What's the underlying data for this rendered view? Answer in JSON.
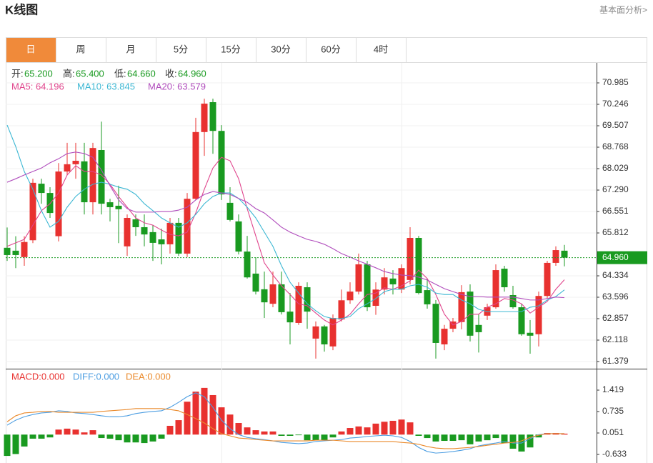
{
  "header": {
    "title": "K线图",
    "link": "基本面分析>"
  },
  "tabs": [
    "日",
    "周",
    "月",
    "5分",
    "15分",
    "30分",
    "60分",
    "4时"
  ],
  "chart_data": [
    {
      "type": "candlestick",
      "info": [
        {
          "label": "开:",
          "value": "65.200"
        },
        {
          "label": "高:",
          "value": "65.400"
        },
        {
          "label": "低:",
          "value": "64.660"
        },
        {
          "label": "收:",
          "value": "64.960"
        }
      ],
      "up_color": "#e8312f",
      "down_color": "#199a20",
      "open": [
        65.3,
        65.2,
        64.98,
        65.56,
        67.51,
        67.19,
        65.7,
        67.93,
        68.18,
        68.28,
        66.87,
        68.67,
        66.87,
        66.75,
        65.35,
        66.28,
        66.01,
        65.84,
        65.59,
        65.42,
        66.16,
        65.1,
        66.99,
        69.29,
        70.32,
        69.33,
        66.85,
        66.21,
        65.17,
        64.41,
        63.87,
        63.37,
        64.04,
        63.1,
        62.71,
        63.94,
        62.17,
        62.59,
        61.9,
        62.83,
        63.49,
        63.79,
        64.73,
        63.3,
        63.86,
        64.24,
        63.86,
        64.19,
        65.64,
        63.84,
        63.37,
        61.97,
        62.51,
        62.74,
        63.79,
        62.64,
        62.96,
        63.25,
        64.58,
        63.67,
        63.25,
        62.37,
        62.32,
        63.64,
        64.78,
        65.2
      ],
      "high": [
        66.0,
        65.7,
        65.7,
        67.68,
        67.68,
        67.39,
        68.22,
        68.92,
        68.92,
        68.92,
        68.92,
        69.65,
        66.99,
        67.44,
        66.45,
        66.45,
        66.45,
        66.08,
        65.96,
        66.33,
        66.33,
        67.19,
        69.78,
        70.44,
        70.44,
        69.53,
        67.39,
        66.45,
        65.71,
        64.97,
        64.48,
        64.48,
        64.48,
        63.74,
        64.11,
        64.11,
        62.76,
        62.64,
        63.0,
        63.86,
        64.11,
        65.1,
        64.85,
        64.11,
        64.6,
        64.53,
        64.73,
        66.01,
        65.71,
        64.24,
        63.5,
        62.64,
        62.88,
        64.01,
        64.04,
        63.0,
        63.37,
        64.73,
        64.68,
        63.99,
        63.37,
        62.81,
        63.79,
        64.85,
        65.35,
        65.4
      ],
      "low": [
        64.85,
        64.6,
        64.68,
        65.46,
        66.82,
        66.33,
        65.52,
        67.8,
        67.68,
        66.45,
        66.45,
        66.45,
        66.21,
        65.46,
        65.02,
        65.71,
        65.35,
        64.85,
        64.73,
        65.1,
        65.02,
        64.98,
        66.95,
        68.47,
        68.54,
        66.95,
        66.21,
        65.07,
        64.24,
        63.69,
        62.88,
        63.25,
        63.0,
        61.97,
        62.64,
        62.51,
        61.48,
        61.72,
        61.77,
        62.76,
        63.37,
        63.69,
        63.12,
        62.99,
        63.69,
        63.69,
        63.74,
        64.04,
        63.69,
        63.2,
        61.48,
        61.77,
        62.39,
        62.49,
        62.07,
        61.69,
        62.81,
        63.2,
        63.79,
        63.2,
        62.27,
        61.65,
        61.9,
        63.55,
        64.68,
        64.66
      ],
      "close": [
        65.05,
        65.05,
        65.5,
        67.54,
        67.19,
        66.5,
        67.93,
        68.18,
        68.3,
        66.87,
        68.74,
        66.82,
        66.7,
        66.63,
        66.33,
        66.01,
        65.76,
        65.47,
        65.42,
        66.16,
        65.1,
        66.99,
        69.29,
        70.27,
        69.33,
        67.14,
        66.26,
        65.17,
        64.28,
        63.79,
        63.42,
        64.04,
        63.08,
        62.73,
        63.99,
        63.1,
        62.59,
        61.97,
        62.88,
        63.49,
        63.79,
        64.73,
        63.25,
        63.86,
        64.28,
        64.04,
        64.6,
        65.64,
        63.74,
        63.35,
        62.02,
        62.51,
        62.76,
        63.77,
        62.27,
        62.39,
        63.25,
        64.53,
        63.94,
        63.25,
        62.32,
        62.27,
        63.64,
        64.78,
        65.22,
        64.96
      ],
      "series": [
        {
          "name": "MA5: 64.196",
          "color": "#e0448c",
          "values": [
            65.35,
            65.47,
            65.59,
            66.08,
            66.58,
            66.82,
            67.19,
            67.81,
            68.13,
            67.93,
            67.93,
            67.81,
            67.49,
            67.07,
            66.7,
            66.33,
            66.16,
            66.08,
            65.91,
            65.76,
            65.71,
            65.84,
            66.5,
            67.32,
            68.05,
            68.42,
            68.3,
            67.68,
            66.65,
            65.71,
            64.78,
            64.36,
            63.99,
            63.69,
            63.37,
            63.3,
            63.05,
            62.81,
            62.64,
            62.81,
            63.01,
            63.37,
            63.69,
            63.74,
            63.92,
            63.87,
            63.99,
            64.16,
            64.53,
            64.24,
            63.69,
            63.01,
            62.64,
            62.76,
            63.01,
            63.01,
            63.25,
            63.37,
            63.55,
            63.5,
            63.37,
            63.05,
            63.25,
            63.45,
            63.87,
            64.2
          ]
        },
        {
          "name": "MA10: 63.845",
          "color": "#3cb7d3",
          "values": [
            69.53,
            68.79,
            67.93,
            67.32,
            66.58,
            66.01,
            66.21,
            66.7,
            67.07,
            67.32,
            67.49,
            67.56,
            67.49,
            67.39,
            67.32,
            67.14,
            66.82,
            66.58,
            66.33,
            66.16,
            66.01,
            66.16,
            66.45,
            66.82,
            67.07,
            67.19,
            67.19,
            67.0,
            66.7,
            66.33,
            65.84,
            65.35,
            64.68,
            64.11,
            63.74,
            63.37,
            63.13,
            62.93,
            62.86,
            62.86,
            62.93,
            63.2,
            63.37,
            63.55,
            63.79,
            63.87,
            63.87,
            63.99,
            64.04,
            63.94,
            63.74,
            63.69,
            63.69,
            63.5,
            63.37,
            63.18,
            63.1,
            63.1,
            63.1,
            63.1,
            63.1,
            63.25,
            63.3,
            63.5,
            63.62,
            63.85
          ]
        },
        {
          "name": "MA20: 63.579",
          "color": "#b04cbc",
          "values": [
            67.56,
            67.68,
            67.81,
            67.93,
            68.05,
            68.23,
            68.37,
            68.55,
            68.6,
            68.55,
            68.42,
            67.98,
            67.44,
            66.95,
            66.65,
            66.53,
            66.53,
            66.53,
            66.55,
            66.55,
            66.6,
            66.7,
            66.95,
            67.14,
            67.24,
            67.19,
            67.14,
            67.0,
            66.87,
            66.65,
            66.5,
            66.26,
            66.01,
            65.84,
            65.71,
            65.59,
            65.52,
            65.42,
            65.27,
            65.1,
            64.98,
            64.85,
            64.73,
            64.61,
            64.48,
            64.41,
            64.36,
            64.34,
            64.29,
            64.19,
            64.04,
            63.89,
            63.79,
            63.69,
            63.62,
            63.62,
            63.6,
            63.6,
            63.6,
            63.6,
            63.55,
            63.5,
            63.5,
            63.55,
            63.6,
            63.58
          ]
        }
      ],
      "last_price": {
        "value": 64.96,
        "label": "64.960"
      },
      "ylim": [
        61.157,
        71.675
      ],
      "yticks": [
        70.985,
        70.246,
        69.507,
        68.768,
        68.029,
        {
          "value": 67.29,
          "label": "67.290"
        },
        66.551,
        65.812,
        64.334,
        63.596,
        62.857,
        62.118,
        61.379
      ],
      "grid": true
    },
    {
      "type": "macd",
      "bar_series": {
        "name": "MACD:0.000",
        "color": "#e8312f",
        "values": [
          -0.68,
          -0.62,
          -0.38,
          -0.13,
          -0.13,
          -0.09,
          0.16,
          0.19,
          0.16,
          0.07,
          0.14,
          -0.11,
          -0.13,
          -0.18,
          -0.25,
          -0.25,
          -0.27,
          -0.22,
          -0.13,
          0.28,
          0.46,
          1.05,
          1.37,
          1.49,
          1.26,
          0.87,
          0.64,
          0.37,
          0.23,
          0.14,
          0.1,
          0.1,
          -0.04,
          -0.04,
          -0.02,
          -0.18,
          -0.18,
          -0.18,
          -0.09,
          0.1,
          0.21,
          0.26,
          0.23,
          0.35,
          0.41,
          0.44,
          0.48,
          0.39,
          -0.04,
          -0.11,
          -0.22,
          -0.2,
          -0.2,
          -0.18,
          -0.31,
          -0.22,
          -0.18,
          -0.11,
          -0.27,
          -0.45,
          -0.54,
          -0.41,
          -0.09,
          0.05,
          0.05,
          0.03
        ]
      },
      "negative_color": "#199a20",
      "series": [
        {
          "name": "DIFF:0.000",
          "color": "#4d9ee2",
          "values": [
            0.3,
            0.46,
            0.57,
            0.64,
            0.69,
            0.71,
            0.76,
            0.74,
            0.69,
            0.67,
            0.64,
            0.6,
            0.57,
            0.57,
            0.6,
            0.67,
            0.71,
            0.74,
            0.76,
            0.87,
            1.03,
            1.21,
            1.33,
            1.21,
            0.87,
            0.46,
            0.19,
            0.0,
            -0.09,
            -0.13,
            -0.16,
            -0.2,
            -0.25,
            -0.27,
            -0.29,
            -0.27,
            -0.22,
            -0.2,
            -0.18,
            -0.16,
            -0.11,
            -0.09,
            -0.06,
            -0.04,
            -0.02,
            -0.04,
            -0.09,
            -0.22,
            -0.41,
            -0.54,
            -0.59,
            -0.57,
            -0.54,
            -0.5,
            -0.45,
            -0.36,
            -0.31,
            -0.27,
            -0.22,
            -0.27,
            -0.27,
            -0.13,
            0.0,
            0.03,
            0.03,
            0.03
          ]
        },
        {
          "name": "DEA:0.000",
          "color": "#ea8a2c",
          "values": [
            0.41,
            0.6,
            0.69,
            0.71,
            0.74,
            0.74,
            0.71,
            0.71,
            0.71,
            0.71,
            0.71,
            0.74,
            0.76,
            0.78,
            0.8,
            0.83,
            0.83,
            0.83,
            0.83,
            0.8,
            0.76,
            0.64,
            0.51,
            0.37,
            0.19,
            0.03,
            -0.04,
            -0.11,
            -0.13,
            -0.16,
            -0.18,
            -0.2,
            -0.2,
            -0.2,
            -0.2,
            -0.2,
            -0.18,
            -0.18,
            -0.18,
            -0.2,
            -0.22,
            -0.22,
            -0.22,
            -0.22,
            -0.22,
            -0.22,
            -0.25,
            -0.27,
            -0.31,
            -0.38,
            -0.43,
            -0.45,
            -0.45,
            -0.43,
            -0.41,
            -0.38,
            -0.34,
            -0.31,
            -0.27,
            -0.25,
            -0.2,
            -0.09,
            -0.02,
            0.03,
            0.03,
            0.03
          ]
        }
      ],
      "ylim": [
        -0.838,
        2.08
      ],
      "yticks": [
        1.419,
        0.735,
        0.051,
        -0.633
      ],
      "grid": false
    }
  ]
}
